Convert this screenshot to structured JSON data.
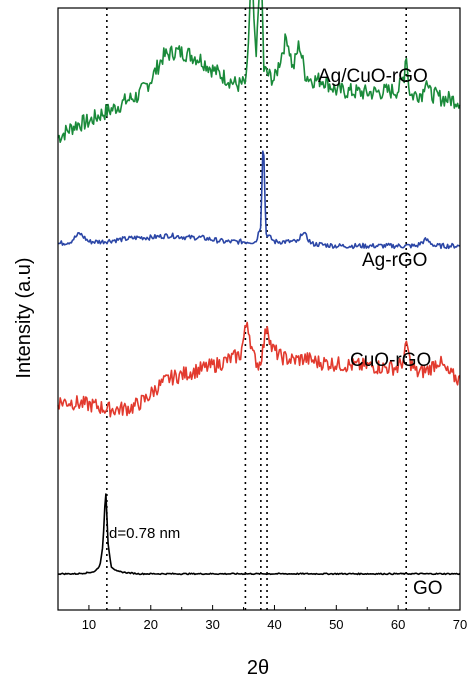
{
  "chart_data": {
    "type": "line",
    "title": "",
    "xlabel": "2θ",
    "ylabel": "Intensity (a.u)",
    "xlim": [
      5,
      70
    ],
    "xticks": [
      10,
      20,
      30,
      40,
      50,
      60,
      70
    ],
    "y_axis_ticks": false,
    "grid": false,
    "reference_lines_x": [
      12.9,
      35.3,
      37.8,
      38.8,
      61.3
    ],
    "annotation": "d=0.78 nm",
    "series": [
      {
        "name": "Ag/CuO-rGO",
        "color": "#1a8a3a",
        "x": [
          5,
          8,
          10,
          12,
          14,
          16,
          18,
          20,
          22,
          24,
          26,
          28,
          30,
          32,
          34,
          35.5,
          36.3,
          37,
          37.8,
          38.3,
          39,
          40,
          42,
          43,
          44,
          45,
          46,
          48,
          50,
          55,
          60,
          61,
          61.3,
          61.6,
          62,
          64,
          64.5,
          65,
          67,
          70
        ],
        "y": [
          24,
          29,
          30,
          33,
          35,
          38,
          40,
          46,
          55,
          57,
          56,
          54,
          50,
          47,
          44,
          45,
          90,
          52,
          95,
          50,
          48,
          46,
          63,
          50,
          60,
          48,
          46,
          46,
          42,
          41,
          42,
          48,
          58,
          46,
          40,
          41,
          48,
          41,
          39,
          38
        ]
      },
      {
        "name": "Ag-rGO",
        "color": "#2b46a6",
        "x": [
          5,
          7,
          8.5,
          10,
          12,
          15,
          18,
          20,
          23,
          26,
          28,
          30,
          32,
          34,
          36,
          37,
          37.8,
          38.2,
          38.6,
          40,
          42,
          44,
          44.5,
          46,
          50,
          55,
          60,
          63,
          64.5,
          66,
          70
        ],
        "y": [
          41,
          42,
          46,
          42,
          42,
          43,
          44,
          44,
          45,
          44,
          44,
          43,
          42,
          42,
          42,
          42,
          50,
          95,
          46,
          42,
          42,
          42,
          47,
          41,
          40,
          40,
          40,
          40,
          43,
          40,
          40
        ]
      },
      {
        "name": "CuO-rGO",
        "color": "#e23a2e",
        "x": [
          5,
          7,
          9,
          11,
          13,
          15,
          17,
          19,
          21,
          23,
          25,
          27,
          29,
          31,
          33,
          34.5,
          35.6,
          36.5,
          37.5,
          38.2,
          38.8,
          39.5,
          41,
          43,
          45,
          47,
          50,
          53,
          55,
          58,
          60,
          61,
          61.4,
          61.8,
          63,
          65,
          66.5,
          68,
          70
        ],
        "y": [
          32,
          32,
          31,
          30,
          28,
          28,
          29,
          33,
          40,
          45,
          47,
          49,
          51,
          53,
          56,
          58,
          77,
          58,
          52,
          62,
          76,
          62,
          57,
          55,
          56,
          54,
          53,
          52,
          52,
          51,
          51,
          56,
          66,
          55,
          48,
          50,
          55,
          48,
          44
        ]
      },
      {
        "name": "GO",
        "color": "#000000",
        "x": [
          5,
          8,
          10,
          11,
          11.8,
          12.3,
          12.7,
          13.1,
          13.6,
          14.5,
          16,
          18,
          20,
          25,
          30,
          35,
          40,
          45,
          50,
          55,
          60,
          65,
          70
        ],
        "y": [
          50,
          50,
          51,
          52,
          57,
          75,
          120,
          75,
          56,
          52,
          51,
          50,
          50,
          50,
          50,
          50,
          50,
          50,
          50,
          50,
          50,
          50,
          50
        ]
      }
    ]
  }
}
